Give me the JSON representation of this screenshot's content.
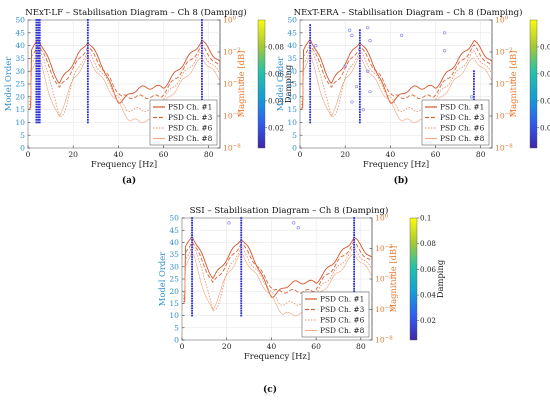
{
  "colors": {
    "model_order_axis": "#2f8fd0",
    "magnitude_axis": "#e8772e",
    "stable_poles": "#2b2fd6",
    "unstable_poles": "#7d82e6",
    "psd_ch1": "#d4552a",
    "psd_ch3": "#d9663a",
    "psd_ch6": "#e88b5e",
    "psd_ch8": "#f2a07a"
  },
  "chart_data": [
    {
      "panel_label": "(a)",
      "type": "scatter",
      "title": "NExT-LF – Stabilisation Diagram – Ch 8 (Damping)",
      "xlabel": "Frequency [Hz]",
      "ylabel_left": "Model Order",
      "ylabel_right": "Magnitude [dB]",
      "colorbar_label": "Damping",
      "xlim": [
        0,
        85
      ],
      "ylim_left": [
        0,
        50
      ],
      "ylim_right_log10": [
        -8,
        0
      ],
      "x_ticks": [
        "0",
        "20",
        "40",
        "60",
        "80"
      ],
      "y_left_ticks": [
        "0",
        "5",
        "10",
        "15",
        "20",
        "25",
        "30",
        "35",
        "40",
        "45",
        "50"
      ],
      "y_right_ticks": [
        {
          "base": "10",
          "exp": "0"
        },
        {
          "base": "10",
          "exp": "−2"
        },
        {
          "base": "10",
          "exp": "−4"
        },
        {
          "base": "10",
          "exp": "−6"
        },
        {
          "base": "10",
          "exp": "−8"
        }
      ],
      "colorbar_ticks": [
        "0.02",
        "0.04",
        "0.06",
        "0.08"
      ],
      "colorbar_range": [
        0.005,
        0.1
      ],
      "legend": [
        "PSD Ch. #1",
        "PSD Ch. #3",
        "PSD Ch. #6",
        "PSD Ch. #8"
      ],
      "pole_columns": [
        {
          "freq": 3.7,
          "orders": [
            10,
            50
          ]
        },
        {
          "freq": 4.5,
          "orders": [
            10,
            50
          ]
        },
        {
          "freq": 5.2,
          "orders": [
            10,
            50
          ]
        },
        {
          "freq": 26.5,
          "orders": [
            10,
            50
          ]
        },
        {
          "freq": 77.0,
          "orders": [
            10,
            50
          ]
        }
      ],
      "psd_peaks_hz": [
        4.5,
        26.5,
        77.0
      ]
    },
    {
      "panel_label": "(b)",
      "type": "scatter",
      "title": "NExT-ERA – Stabilisation Diagram – Ch 8 (Damping)",
      "xlabel": "Frequency [Hz]",
      "ylabel_left": "Model Order",
      "ylabel_right": "Magnitude [dB]",
      "colorbar_label": "Damping",
      "xlim": [
        0,
        85
      ],
      "ylim_left": [
        0,
        50
      ],
      "ylim_right_log10": [
        -8,
        0
      ],
      "x_ticks": [
        "0",
        "20",
        "40",
        "60",
        "80"
      ],
      "y_left_ticks": [
        "0",
        "5",
        "10",
        "15",
        "20",
        "25",
        "30",
        "35",
        "40",
        "45",
        "50"
      ],
      "y_right_ticks": [
        {
          "base": "10",
          "exp": "0"
        },
        {
          "base": "10",
          "exp": "−2"
        },
        {
          "base": "10",
          "exp": "−4"
        },
        {
          "base": "10",
          "exp": "−6"
        },
        {
          "base": "10",
          "exp": "−8"
        }
      ],
      "colorbar_ticks": [
        "0.02",
        "0.04",
        "0.06",
        "0.08"
      ],
      "colorbar_range": [
        0.005,
        0.1
      ],
      "legend": [
        "PSD Ch. #1",
        "PSD Ch. #3",
        "PSD Ch. #6",
        "PSD Ch. #8"
      ],
      "pole_columns": [
        {
          "freq": 4.5,
          "orders": [
            10,
            48
          ]
        },
        {
          "freq": 26.5,
          "orders": [
            10,
            46
          ]
        },
        {
          "freq": 77.0,
          "orders": [
            10,
            30
          ]
        }
      ],
      "scattered_poles": [
        {
          "freq": 22,
          "order": 46
        },
        {
          "freq": 23,
          "order": 44
        },
        {
          "freq": 30,
          "order": 47
        },
        {
          "freq": 31,
          "order": 42
        },
        {
          "freq": 45,
          "order": 44
        },
        {
          "freq": 64,
          "order": 45
        },
        {
          "freq": 64,
          "order": 38
        },
        {
          "freq": 20,
          "order": 32
        },
        {
          "freq": 30,
          "order": 30
        },
        {
          "freq": 25,
          "order": 24
        },
        {
          "freq": 31,
          "order": 22
        },
        {
          "freq": 23,
          "order": 18
        },
        {
          "freq": 28,
          "order": 15
        },
        {
          "freq": 7,
          "order": 40
        },
        {
          "freq": 76,
          "order": 20
        }
      ],
      "psd_peaks_hz": [
        4.5,
        26.5,
        77.0
      ]
    },
    {
      "panel_label": "(c)",
      "type": "scatter",
      "title": "SSI – Stabilisation Diagram – Ch 8 (Damping)",
      "xlabel": "Frequency [Hz]",
      "ylabel_left": "Model Order",
      "ylabel_right": "Magnitude [dB]",
      "colorbar_label": "Damping",
      "xlim": [
        0,
        85
      ],
      "ylim_left": [
        0,
        50
      ],
      "ylim_right_log10": [
        -8,
        0
      ],
      "x_ticks": [
        "0",
        "20",
        "40",
        "60",
        "80"
      ],
      "y_left_ticks": [
        "0",
        "5",
        "10",
        "15",
        "20",
        "25",
        "30",
        "35",
        "40",
        "45",
        "50"
      ],
      "y_right_ticks": [
        {
          "base": "10",
          "exp": "0"
        },
        {
          "base": "10",
          "exp": "−2"
        },
        {
          "base": "10",
          "exp": "−4"
        },
        {
          "base": "10",
          "exp": "−6"
        },
        {
          "base": "10",
          "exp": "−8"
        }
      ],
      "colorbar_ticks": [
        "0.02",
        "0.04",
        "0.06",
        "0.08",
        "0.1"
      ],
      "colorbar_range": [
        0.005,
        0.1
      ],
      "legend": [
        "PSD Ch. #1",
        "PSD Ch. #3",
        "PSD Ch. #6",
        "PSD Ch. #8"
      ],
      "pole_columns": [
        {
          "freq": 4.5,
          "orders": [
            10,
            50
          ]
        },
        {
          "freq": 26.5,
          "orders": [
            10,
            50
          ]
        },
        {
          "freq": 77.0,
          "orders": [
            10,
            50
          ]
        }
      ],
      "scattered_poles": [
        {
          "freq": 21,
          "order": 48
        },
        {
          "freq": 50,
          "order": 48
        },
        {
          "freq": 52,
          "order": 46
        }
      ],
      "psd_peaks_hz": [
        4.5,
        26.5,
        77.0
      ]
    }
  ]
}
